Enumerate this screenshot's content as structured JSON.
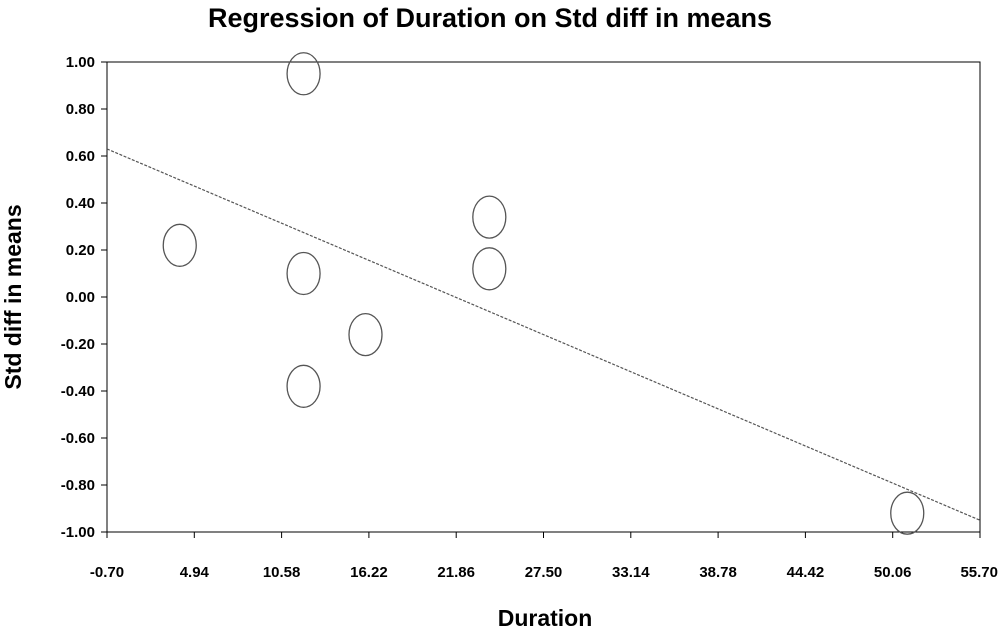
{
  "chart_data": {
    "type": "scatter",
    "title": "Regression of Duration on Std diff in means",
    "xlabel": "Duration",
    "ylabel": "Std diff in means",
    "xlim": [
      -0.7,
      55.7
    ],
    "ylim": [
      -1.0,
      1.0
    ],
    "x_ticks": [
      "-0.70",
      "4.94",
      "10.58",
      "16.22",
      "21.86",
      "27.50",
      "33.14",
      "38.78",
      "44.42",
      "50.06",
      "55.70"
    ],
    "y_ticks": [
      "1.00",
      "0.80",
      "0.60",
      "0.40",
      "0.20",
      "0.00",
      "-0.20",
      "-0.40",
      "-0.60",
      "-0.80",
      "-1.00"
    ],
    "grid": false,
    "legend": false,
    "marker": "open-circle",
    "points": [
      {
        "x": 12.0,
        "y": 0.95
      },
      {
        "x": 4.0,
        "y": 0.22
      },
      {
        "x": 12.0,
        "y": 0.1
      },
      {
        "x": 12.0,
        "y": -0.38
      },
      {
        "x": 16.0,
        "y": -0.16
      },
      {
        "x": 24.0,
        "y": 0.34
      },
      {
        "x": 24.0,
        "y": 0.12
      },
      {
        "x": 51.0,
        "y": -0.92
      }
    ],
    "regression_line": {
      "from": {
        "x": -0.7,
        "y": 0.63
      },
      "to": {
        "x": 55.7,
        "y": -0.95
      }
    },
    "colors": {
      "axis": "#000000",
      "marker_stroke": "#555555",
      "line": "#555555",
      "background": "#ffffff"
    }
  }
}
